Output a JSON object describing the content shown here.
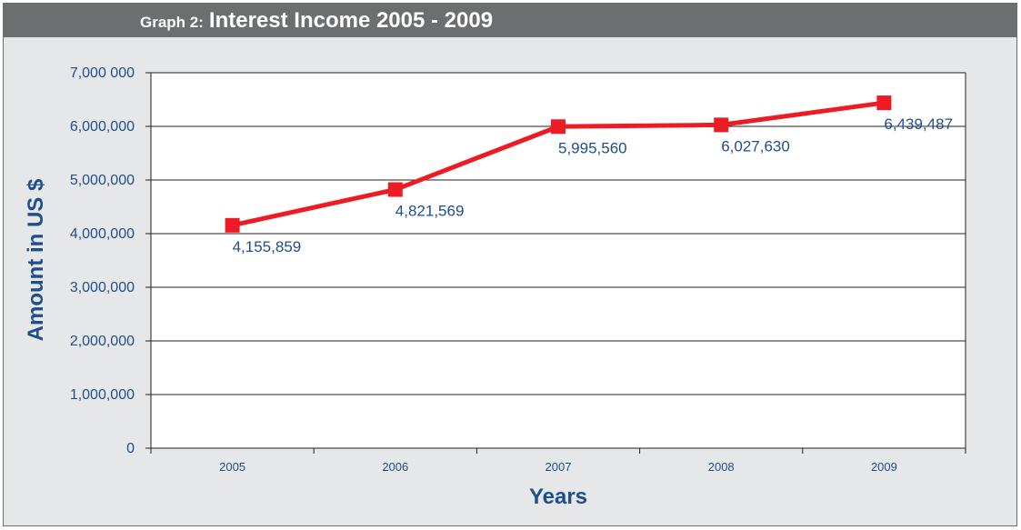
{
  "header": {
    "prefix": "Graph 2:",
    "title": "Interest Income 2005 - 2009"
  },
  "colors": {
    "series": "#ed1c24",
    "text": "#1f4e8c",
    "background": "#e6e7e8",
    "plot_area": "#ffffff",
    "title_bar": "#6d6e71"
  },
  "chart_data": {
    "type": "line",
    "title": "Interest Income 2005 - 2009",
    "xlabel": "Years",
    "ylabel": "Amount in US $",
    "categories": [
      "2005",
      "2006",
      "2007",
      "2008",
      "2009"
    ],
    "series": [
      {
        "values": [
          4155859,
          4821569,
          5995560,
          6027630,
          6439487
        ]
      }
    ],
    "data_labels": [
      "4,155,859",
      "4,821,569",
      "5,995,560",
      "6,027,630",
      "6,439,487"
    ],
    "y_ticks": [
      0,
      1000000,
      2000000,
      3000000,
      4000000,
      5000000,
      6000000,
      7000000
    ],
    "y_tick_labels": [
      "0",
      "1,000,000",
      "2,000,000",
      "3,000,000",
      "4,000,000",
      "5,000,000",
      "6,000,000",
      "7,000 000"
    ],
    "ylim": [
      0,
      7000000
    ],
    "grid": true,
    "legend": false,
    "marker": "square"
  }
}
